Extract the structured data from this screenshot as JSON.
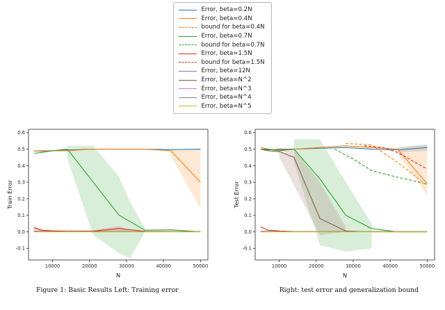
{
  "legend": {
    "items": [
      {
        "label": "Error, beta=0.2N",
        "color": "#1f77b4",
        "dash": false
      },
      {
        "label": "Error, beta=0.4N",
        "color": "#ff7f0e",
        "dash": false
      },
      {
        "label": "bound for beta=0.4N",
        "color": "#ff7f0e",
        "dash": true
      },
      {
        "label": "Error, beta=0.7N",
        "color": "#2ca02c",
        "dash": false
      },
      {
        "label": "bound for beta=0.7N",
        "color": "#2ca02c",
        "dash": true
      },
      {
        "label": "Error, beta=1.5N",
        "color": "#d62728",
        "dash": false
      },
      {
        "label": "bound for beta=1.5N",
        "color": "#d62728",
        "dash": true
      },
      {
        "label": "Error, beta=12N",
        "color": "#9467bd",
        "dash": false
      },
      {
        "label": "Error, beta=N^2",
        "color": "#8c564b",
        "dash": false
      },
      {
        "label": "Error, beta=N^3",
        "color": "#e377c2",
        "dash": false
      },
      {
        "label": "Error, beta=N^4",
        "color": "#7f7f7f",
        "dash": false
      },
      {
        "label": "Error, beta=N^5",
        "color": "#bcbd22",
        "dash": false
      }
    ]
  },
  "caption": {
    "left": "Figure 1: Basic Results Left: Training error",
    "right": "Right: test error and generalization bound"
  },
  "chart_data": [
    {
      "type": "line",
      "title": "",
      "xlabel": "N",
      "ylabel": "Train Error",
      "xlim": [
        3500,
        52000
      ],
      "ylim": [
        -0.17,
        0.62
      ],
      "xticks": [
        10000,
        20000,
        30000,
        40000,
        50000
      ],
      "yticks": [
        -0.1,
        0.0,
        0.1,
        0.2,
        0.3,
        0.4,
        0.5,
        0.6
      ],
      "grid": false,
      "legend_position": "above-figure",
      "x": [
        5000,
        7000,
        10000,
        14000,
        21000,
        28000,
        35000,
        42000,
        50000
      ],
      "series": [
        {
          "name": "Error, beta=0.2N",
          "color": "#1f77b4",
          "dash": false,
          "y": [
            0.488,
            0.49,
            0.49,
            0.495,
            0.5,
            0.5,
            0.5,
            0.497,
            0.5
          ]
        },
        {
          "name": "Error, beta=0.4N",
          "color": "#ff7f0e",
          "dash": false,
          "y": [
            0.49,
            0.487,
            0.49,
            0.49,
            0.5,
            0.5,
            0.5,
            0.49,
            0.3
          ],
          "band": {
            "x": [
              42000,
              50000
            ],
            "lo": [
              0.46,
              0.14
            ],
            "hi": [
              0.5,
              0.5
            ]
          }
        },
        {
          "name": "Error, beta=0.7N",
          "color": "#2ca02c",
          "dash": false,
          "y": [
            0.475,
            0.48,
            0.49,
            0.5,
            0.3,
            0.1,
            0.01,
            0.012,
            0.0
          ],
          "band": {
            "x": [
              14000,
              21000,
              28000,
              31000,
              35000
            ],
            "lo": [
              0.44,
              -0.02,
              -0.13,
              -0.16,
              0.0
            ],
            "hi": [
              0.52,
              0.52,
              0.33,
              0.18,
              0.02
            ]
          }
        },
        {
          "name": "Error, beta=1.5N",
          "color": "#d62728",
          "dash": false,
          "y": [
            0.025,
            0.01,
            0.005,
            0.003,
            0.004,
            0.02,
            0.003,
            0.002,
            0.002
          ],
          "band": {
            "x": [
              5000,
              7000,
              21000,
              28000,
              31000
            ],
            "lo": [
              0.0,
              0.0,
              0.0,
              0.0,
              0.0
            ],
            "hi": [
              0.04,
              0.015,
              0.01,
              0.035,
              0.008
            ]
          }
        },
        {
          "name": "Error, beta=12N",
          "color": "#9467bd",
          "dash": false,
          "y": [
            0.004,
            0.003,
            0.002,
            0.002,
            0.002,
            0.002,
            0.002,
            0.002,
            0.002
          ]
        },
        {
          "name": "Error, beta=N^2",
          "color": "#8c564b",
          "dash": false,
          "y": [
            0.003,
            0.002,
            0.002,
            0.002,
            0.002,
            0.002,
            0.002,
            0.002,
            0.002
          ]
        },
        {
          "name": "Error, beta=N^3",
          "color": "#e377c2",
          "dash": false,
          "y": [
            0.002,
            0.002,
            0.001,
            0.001,
            0.001,
            0.001,
            0.001,
            0.001,
            0.001
          ]
        },
        {
          "name": "Error, beta=N^4",
          "color": "#7f7f7f",
          "dash": false,
          "y": [
            0.001,
            0.001,
            0.001,
            0.001,
            0.001,
            0.001,
            0.001,
            0.001,
            0.001
          ]
        },
        {
          "name": "Error, beta=N^5",
          "color": "#bcbd22",
          "dash": false,
          "y": [
            0.0,
            0.0,
            0.0,
            0.0,
            0.0,
            0.0,
            0.0,
            0.0,
            0.0
          ]
        }
      ]
    },
    {
      "type": "line",
      "title": "",
      "xlabel": "N",
      "ylabel": "Test Error",
      "xlim": [
        3500,
        52000
      ],
      "ylim": [
        -0.17,
        0.62
      ],
      "xticks": [
        10000,
        20000,
        30000,
        40000,
        50000
      ],
      "yticks": [
        -0.1,
        0.0,
        0.1,
        0.2,
        0.3,
        0.4,
        0.5,
        0.6
      ],
      "grid": false,
      "legend_position": "above-figure",
      "x": [
        5000,
        7000,
        10000,
        14000,
        21000,
        28000,
        35000,
        42000,
        50000
      ],
      "series": [
        {
          "name": "Error, beta=0.2N",
          "color": "#1f77b4",
          "dash": false,
          "y": [
            0.5,
            0.495,
            0.5,
            0.5,
            0.505,
            0.51,
            0.5,
            0.495,
            0.51
          ],
          "band": {
            "x": [
              42000,
              50000
            ],
            "lo": [
              0.48,
              0.49
            ],
            "hi": [
              0.51,
              0.53
            ]
          }
        },
        {
          "name": "Error, beta=0.4N",
          "color": "#ff7f0e",
          "dash": false,
          "y": [
            0.51,
            0.5,
            0.495,
            0.5,
            0.51,
            0.52,
            0.51,
            0.5,
            0.29
          ],
          "band": {
            "x": [
              42000,
              46000,
              50000
            ],
            "lo": [
              0.47,
              0.35,
              0.22
            ],
            "hi": [
              0.51,
              0.52,
              0.52
            ]
          }
        },
        {
          "name": "Error, beta=0.7N",
          "color": "#2ca02c",
          "dash": false,
          "y": [
            0.5,
            0.5,
            0.49,
            0.5,
            0.32,
            0.1,
            0.02,
            0.0,
            0.0
          ],
          "band": {
            "x": [
              14000,
              21000,
              28000,
              35000
            ],
            "lo": [
              0.42,
              -0.08,
              -0.12,
              -0.1
            ],
            "hi": [
              0.56,
              0.56,
              0.3,
              0.05
            ]
          }
        },
        {
          "name": "Error, beta=N^2",
          "color": "#8c564b",
          "dash": false,
          "y": [
            0.5,
            0.49,
            0.485,
            0.45,
            0.08,
            0.005,
            0.0,
            0.0,
            0.0
          ],
          "band": {
            "x": [
              10000,
              14000,
              21000,
              28000
            ],
            "lo": [
              0.45,
              0.28,
              -0.02,
              0.0
            ],
            "hi": [
              0.5,
              0.5,
              0.3,
              0.03
            ]
          }
        },
        {
          "name": "Error, beta=1.5N",
          "color": "#d62728",
          "dash": false,
          "y": [
            0.03,
            0.01,
            0.005,
            0.002,
            0.002,
            0.002,
            0.002,
            0.002,
            0.002
          ]
        },
        {
          "name": "Error, beta=12N",
          "color": "#9467bd",
          "dash": false,
          "y": [
            0.004,
            0.003,
            0.002,
            0.002,
            0.002,
            0.002,
            0.002,
            0.002,
            0.002
          ]
        },
        {
          "name": "Error, beta=N^3",
          "color": "#e377c2",
          "dash": false,
          "y": [
            0.002,
            0.002,
            0.001,
            0.001,
            0.001,
            0.001,
            0.001,
            0.001,
            0.001
          ]
        },
        {
          "name": "Error, beta=N^4",
          "color": "#7f7f7f",
          "dash": false,
          "y": [
            0.001,
            0.001,
            0.001,
            0.001,
            0.001,
            0.001,
            0.001,
            0.001,
            0.001
          ]
        },
        {
          "name": "Error, beta=N^5",
          "color": "#bcbd22",
          "dash": false,
          "y": [
            0.0,
            0.0,
            0.0,
            0.0,
            0.0,
            0.0,
            0.0,
            0.0,
            0.0
          ]
        },
        {
          "name": "bound for beta=0.4N",
          "color": "#ff7f0e",
          "dash": true,
          "x": [
            28000,
            35000,
            42000,
            50000
          ],
          "y": [
            0.535,
            0.525,
            0.42,
            0.28
          ]
        },
        {
          "name": "bound for beta=0.7N",
          "color": "#2ca02c",
          "dash": true,
          "x": [
            25000,
            30000,
            35000,
            42000,
            50000
          ],
          "y": [
            0.5,
            0.44,
            0.37,
            0.33,
            0.29
          ]
        },
        {
          "name": "bound for beta=1.5N",
          "color": "#d62728",
          "dash": true,
          "x": [
            33000,
            38000,
            42000,
            50000
          ],
          "y": [
            0.52,
            0.51,
            0.48,
            0.38
          ]
        }
      ]
    }
  ]
}
